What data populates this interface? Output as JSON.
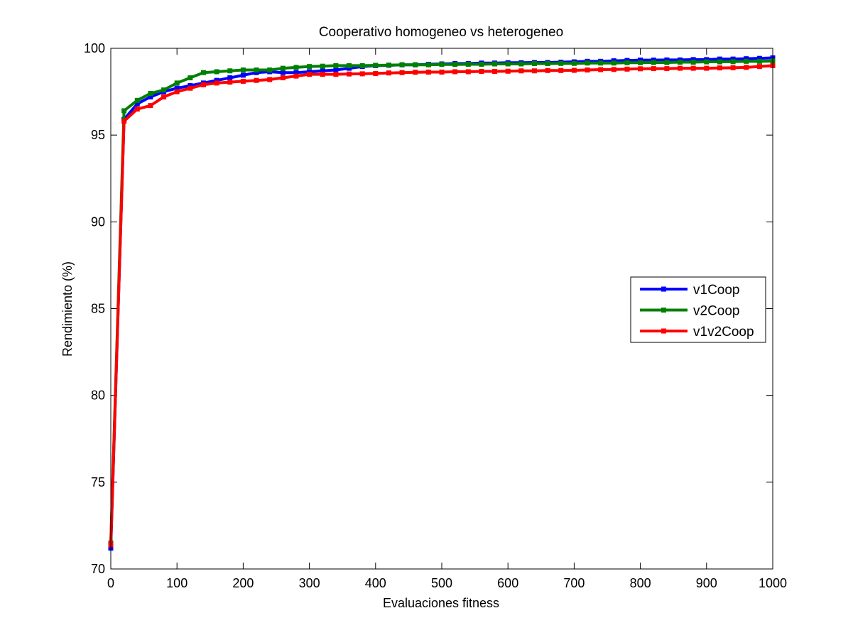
{
  "chart_data": {
    "type": "line",
    "title": "Cooperativo homogeneo vs heterogeneo",
    "xlabel": "Evaluaciones fitness",
    "ylabel": "Rendimiento (%)",
    "xlim": [
      0,
      1000
    ],
    "ylim": [
      70,
      100
    ],
    "xticks": [
      0,
      100,
      200,
      300,
      400,
      500,
      600,
      700,
      800,
      900,
      1000
    ],
    "yticks": [
      70,
      75,
      80,
      85,
      90,
      95,
      100
    ],
    "xtick_labels": [
      "0",
      "100",
      "200",
      "300",
      "400",
      "500",
      "600",
      "700",
      "800",
      "900",
      "1000"
    ],
    "ytick_labels": [
      "70",
      "75",
      "80",
      "85",
      "90",
      "95",
      "100"
    ],
    "grid": false,
    "legend_position": "right",
    "series": [
      {
        "name": "v1Coop",
        "color": "#0000ff",
        "x": [
          0,
          20,
          40,
          60,
          80,
          100,
          120,
          140,
          160,
          180,
          200,
          220,
          240,
          260,
          280,
          300,
          320,
          340,
          360,
          380,
          400,
          420,
          440,
          460,
          480,
          500,
          520,
          540,
          560,
          580,
          600,
          620,
          640,
          660,
          680,
          700,
          720,
          740,
          760,
          780,
          800,
          820,
          840,
          860,
          880,
          900,
          920,
          940,
          960,
          980,
          1000
        ],
        "y": [
          71.2,
          95.9,
          96.8,
          97.2,
          97.5,
          97.7,
          97.85,
          98.0,
          98.15,
          98.3,
          98.45,
          98.6,
          98.65,
          98.6,
          98.6,
          98.65,
          98.7,
          98.75,
          98.85,
          98.95,
          99.0,
          99.02,
          99.05,
          99.05,
          99.08,
          99.1,
          99.12,
          99.12,
          99.15,
          99.15,
          99.17,
          99.17,
          99.18,
          99.18,
          99.2,
          99.22,
          99.25,
          99.25,
          99.28,
          99.3,
          99.32,
          99.32,
          99.33,
          99.33,
          99.35,
          99.35,
          99.38,
          99.38,
          99.4,
          99.42,
          99.45
        ]
      },
      {
        "name": "v2Coop",
        "color": "#008000",
        "x": [
          0,
          20,
          40,
          60,
          80,
          100,
          120,
          140,
          160,
          180,
          200,
          220,
          240,
          260,
          280,
          300,
          320,
          340,
          360,
          380,
          400,
          420,
          440,
          460,
          480,
          500,
          520,
          540,
          560,
          580,
          600,
          620,
          640,
          660,
          680,
          700,
          720,
          740,
          760,
          780,
          800,
          820,
          840,
          860,
          880,
          900,
          920,
          940,
          960,
          980,
          1000
        ],
        "y": [
          71.5,
          96.4,
          97.0,
          97.4,
          97.6,
          98.0,
          98.3,
          98.6,
          98.65,
          98.7,
          98.75,
          98.75,
          98.75,
          98.85,
          98.9,
          98.95,
          98.97,
          99.0,
          99.0,
          99.0,
          99.02,
          99.03,
          99.05,
          99.05,
          99.05,
          99.07,
          99.07,
          99.08,
          99.08,
          99.1,
          99.1,
          99.1,
          99.12,
          99.12,
          99.13,
          99.13,
          99.15,
          99.15,
          99.15,
          99.17,
          99.17,
          99.18,
          99.18,
          99.2,
          99.2,
          99.22,
          99.22,
          99.23,
          99.25,
          99.25,
          99.27
        ]
      },
      {
        "name": "v1v2Coop",
        "color": "#ff0000",
        "x": [
          0,
          20,
          40,
          60,
          80,
          100,
          120,
          140,
          160,
          180,
          200,
          220,
          240,
          260,
          280,
          300,
          320,
          340,
          360,
          380,
          400,
          420,
          440,
          460,
          480,
          500,
          520,
          540,
          560,
          580,
          600,
          620,
          640,
          660,
          680,
          700,
          720,
          740,
          760,
          780,
          800,
          820,
          840,
          860,
          880,
          900,
          920,
          940,
          960,
          980,
          1000
        ],
        "y": [
          71.4,
          95.8,
          96.5,
          96.7,
          97.2,
          97.5,
          97.7,
          97.9,
          98.0,
          98.05,
          98.1,
          98.15,
          98.2,
          98.3,
          98.4,
          98.5,
          98.5,
          98.5,
          98.52,
          98.53,
          98.55,
          98.58,
          98.6,
          98.62,
          98.63,
          98.63,
          98.65,
          98.65,
          98.67,
          98.67,
          98.68,
          98.7,
          98.7,
          98.72,
          98.72,
          98.73,
          98.75,
          98.77,
          98.78,
          98.8,
          98.82,
          98.83,
          98.83,
          98.85,
          98.85,
          98.85,
          98.87,
          98.88,
          98.9,
          98.95,
          99.0
        ]
      }
    ]
  }
}
